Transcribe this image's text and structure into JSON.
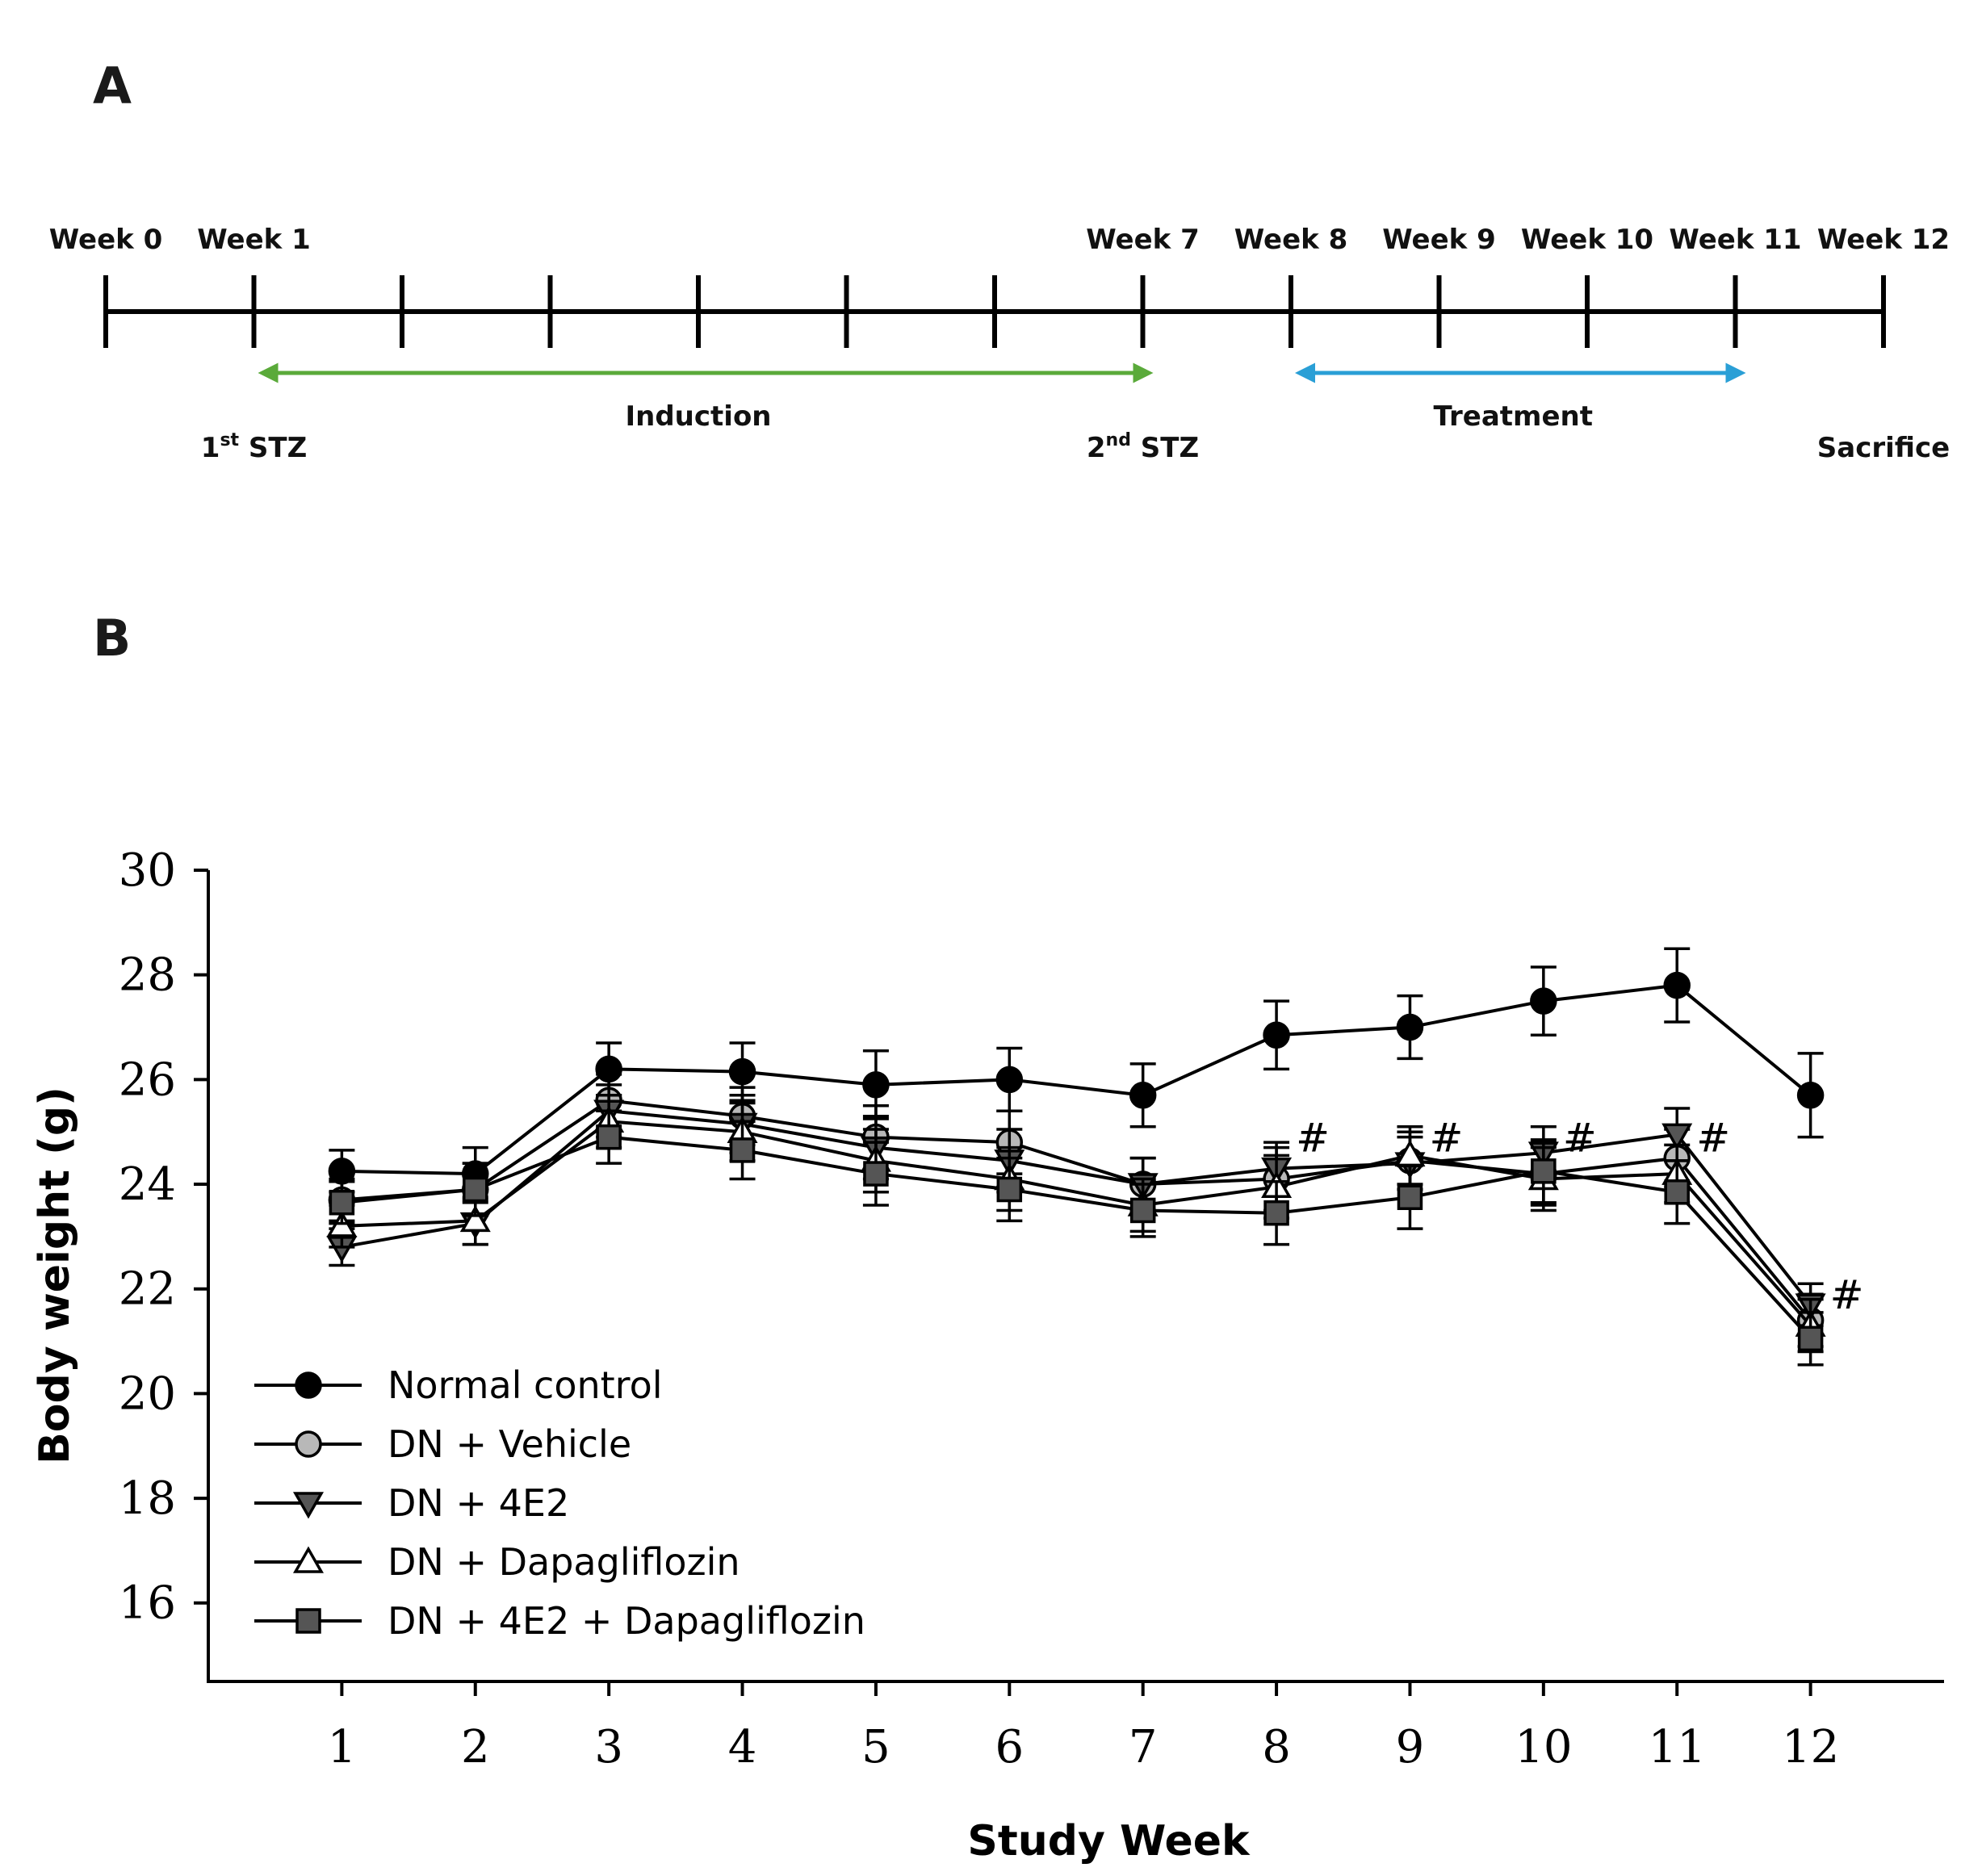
{
  "panels": {
    "a": "A",
    "b": "B"
  },
  "timeline": {
    "week_labels": [
      {
        "week": 0,
        "text": "Week 0"
      },
      {
        "week": 1,
        "text": "Week 1"
      },
      {
        "week": 7,
        "text": "Week 7"
      },
      {
        "week": 8,
        "text": "Week 8"
      },
      {
        "week": 9,
        "text": "Week 9"
      },
      {
        "week": 10,
        "text": "Week 10"
      },
      {
        "week": 11,
        "text": "Week 11"
      },
      {
        "week": 12,
        "text": "Week 12"
      }
    ],
    "ticks": [
      0,
      1,
      2,
      3,
      4,
      5,
      6,
      7,
      8,
      9,
      10,
      11,
      12
    ],
    "phases": [
      {
        "name": "Induction",
        "start": 1,
        "end": 7,
        "color": "#5aaa3a"
      },
      {
        "name": "Treatment",
        "start": 8,
        "end": 11,
        "color": "#2a9fd6"
      }
    ],
    "events": [
      {
        "week": 1,
        "base": "1",
        "sup": "st",
        "rest": " STZ"
      },
      {
        "week": 7,
        "base": "2",
        "sup": "nd",
        "rest": " STZ"
      },
      {
        "week": 12,
        "base": "Sacrifice",
        "sup": "",
        "rest": ""
      }
    ]
  },
  "chart_data": {
    "type": "line",
    "xlabel": "Study Week",
    "ylabel": "Body weight (g)",
    "x": [
      1,
      2,
      3,
      4,
      5,
      6,
      7,
      8,
      9,
      10,
      11,
      12
    ],
    "xlim": [
      0,
      13
    ],
    "ylim": [
      14.5,
      30
    ],
    "yticks": [
      16,
      18,
      20,
      22,
      24,
      26,
      28,
      30
    ],
    "legend_position": "lower-left",
    "series": [
      {
        "name": "Normal control",
        "marker": "circle",
        "fill": "#000000",
        "values": [
          24.25,
          24.2,
          26.2,
          26.15,
          25.9,
          26.0,
          25.7,
          26.85,
          27.0,
          27.5,
          27.8,
          25.7
        ],
        "errors": [
          0.4,
          0.5,
          0.5,
          0.55,
          0.65,
          0.6,
          0.6,
          0.65,
          0.6,
          0.65,
          0.7,
          0.8
        ]
      },
      {
        "name": "DN + Vehicle",
        "marker": "circle",
        "fill": "#b8b8b8",
        "values": [
          23.7,
          23.9,
          25.6,
          25.3,
          24.9,
          24.8,
          24.0,
          24.1,
          24.45,
          24.2,
          24.5,
          21.4
        ],
        "errors": [
          0.4,
          0.5,
          0.5,
          0.55,
          0.6,
          0.6,
          0.5,
          0.6,
          0.55,
          0.6,
          0.55,
          0.5
        ]
      },
      {
        "name": "DN + 4E2",
        "marker": "triangle-down",
        "fill": "#555555",
        "values": [
          22.8,
          23.25,
          25.4,
          25.15,
          24.7,
          24.45,
          24.0,
          24.3,
          24.4,
          24.6,
          24.95,
          21.7
        ],
        "errors": [
          0.35,
          0.4,
          0.5,
          0.55,
          0.6,
          0.6,
          0.5,
          0.5,
          0.5,
          0.5,
          0.5,
          0.4
        ]
      },
      {
        "name": "DN + Dapagliflozin",
        "marker": "triangle-up",
        "fill": "#ffffff",
        "values": [
          23.2,
          23.3,
          25.2,
          25.0,
          24.45,
          24.1,
          23.6,
          23.95,
          24.55,
          24.1,
          24.2,
          21.3
        ],
        "errors": [
          0.4,
          0.45,
          0.5,
          0.55,
          0.6,
          0.6,
          0.5,
          0.6,
          0.55,
          0.6,
          0.55,
          0.5
        ]
      },
      {
        "name": "DN + 4E2 + Dapagliflozin",
        "marker": "square",
        "fill": "#555555",
        "values": [
          23.65,
          23.9,
          24.9,
          24.65,
          24.2,
          23.9,
          23.5,
          23.45,
          23.75,
          24.25,
          23.85,
          21.05
        ],
        "errors": [
          0.4,
          0.5,
          0.5,
          0.55,
          0.6,
          0.6,
          0.5,
          0.6,
          0.6,
          0.6,
          0.6,
          0.5
        ]
      }
    ],
    "annotations": [
      {
        "text": "#",
        "x": 8,
        "y": 24.9
      },
      {
        "text": "#",
        "x": 9,
        "y": 24.9
      },
      {
        "text": "#",
        "x": 10,
        "y": 24.9
      },
      {
        "text": "#",
        "x": 11,
        "y": 24.9
      },
      {
        "text": "#",
        "x": 12,
        "y": 21.9
      }
    ]
  }
}
